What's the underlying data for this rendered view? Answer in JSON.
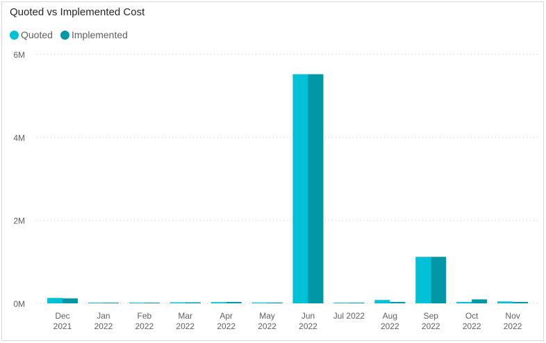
{
  "chart_data": {
    "type": "bar",
    "title": "Quoted vs Implemented Cost",
    "categories": [
      [
        "Dec",
        "2021"
      ],
      [
        "Jan",
        "2022"
      ],
      [
        "Feb",
        "2022"
      ],
      [
        "Mar",
        "2022"
      ],
      [
        "Apr",
        "2022"
      ],
      [
        "May",
        "2022"
      ],
      [
        "Jun",
        "2022"
      ],
      [
        "Jul 2022"
      ],
      [
        "Aug",
        "2022"
      ],
      [
        "Sep",
        "2022"
      ],
      [
        "Oct",
        "2022"
      ],
      [
        "Nov",
        "2022"
      ]
    ],
    "series": [
      {
        "name": "Quoted",
        "color": "#01c1d6",
        "values": [
          130000,
          15000,
          12000,
          25000,
          30000,
          20000,
          5520000,
          15000,
          80000,
          1120000,
          35000,
          45000
        ]
      },
      {
        "name": "Implemented",
        "color": "#0097a7",
        "values": [
          120000,
          15000,
          12000,
          25000,
          35000,
          20000,
          5520000,
          15000,
          35000,
          1120000,
          95000,
          35000
        ]
      }
    ],
    "ylim": [
      0,
      6000000
    ],
    "yticks": [
      {
        "value": 0,
        "label": "0M"
      },
      {
        "value": 2000000,
        "label": "2M"
      },
      {
        "value": 4000000,
        "label": "4M"
      },
      {
        "value": 6000000,
        "label": "6M"
      }
    ],
    "grid": true,
    "legend_position": "top-left"
  }
}
